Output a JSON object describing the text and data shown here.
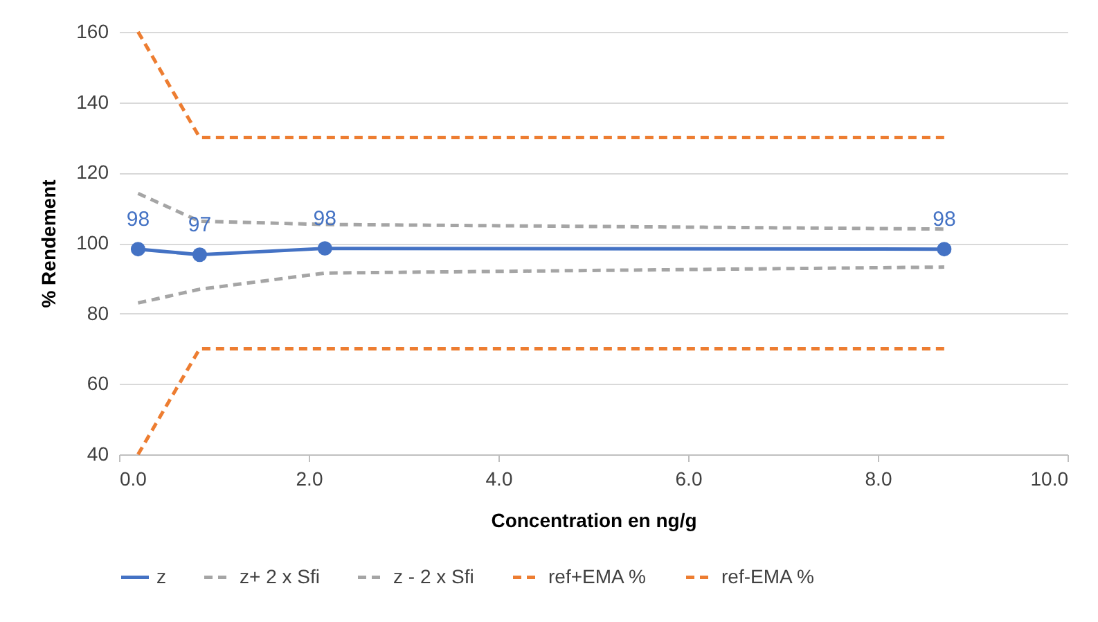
{
  "chart_data": {
    "type": "line",
    "xlabel": "Concentration en ng/g",
    "ylabel": "% Rendement",
    "x": [
      0.2,
      0.85,
      2.17,
      8.7
    ],
    "series": [
      {
        "name": "z",
        "color": "#4472c4",
        "values": [
          98.3,
          96.7,
          98.5,
          98.3
        ],
        "marker": "circle",
        "line_style": "solid",
        "value_labels": [
          "98",
          "97",
          "98",
          "98"
        ]
      },
      {
        "name": "z+ 2 x Sfi",
        "color": "#a5a5a5",
        "values": [
          114.1,
          106.2,
          105.3,
          104
        ],
        "marker": "none",
        "line_style": "dashed"
      },
      {
        "name": "z - 2 x Sfi",
        "color": "#a5a5a5",
        "values": [
          83,
          86.9,
          91.5,
          93.2
        ],
        "marker": "none",
        "line_style": "dashed"
      },
      {
        "name": "ref+EMA %",
        "color": "#ed7d31",
        "values": [
          160,
          130,
          130,
          130
        ],
        "marker": "none",
        "line_style": "dashed"
      },
      {
        "name": "ref-EMA %",
        "color": "#ed7d31",
        "values": [
          40,
          70,
          70,
          70
        ],
        "marker": "none",
        "line_style": "dashed"
      }
    ],
    "xlim": [
      0,
      10
    ],
    "xticks": [
      {
        "value": 0,
        "label": "0.0"
      },
      {
        "value": 2,
        "label": "2.0"
      },
      {
        "value": 4,
        "label": "4.0"
      },
      {
        "value": 6,
        "label": "6.0"
      },
      {
        "value": 8,
        "label": "8.0"
      },
      {
        "value": 10,
        "label": "10.0"
      }
    ],
    "ylim": [
      40,
      160
    ],
    "yticks": [
      40,
      60,
      80,
      100,
      120,
      140,
      160
    ],
    "grid": "y",
    "legend": "bottom"
  }
}
